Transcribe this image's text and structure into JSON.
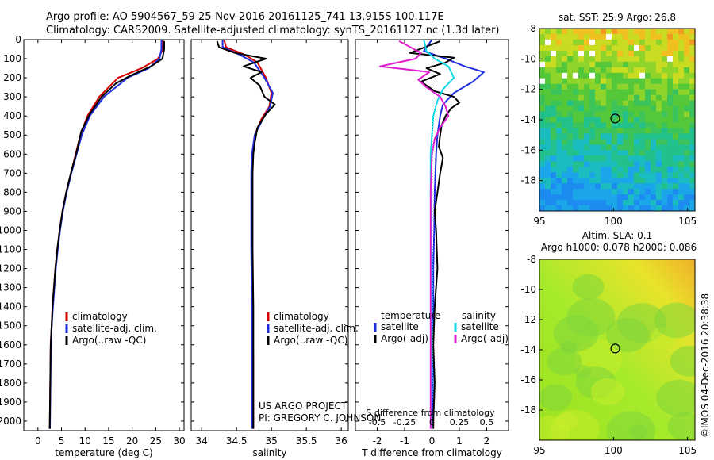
{
  "header": {
    "line1": "Argo profile: AO 5904567_59 25-Nov-2016 20161125_741 13.915S 100.117E",
    "line2": "Climatology: CARS2009. Satellite-adjusted climatology: synTS_20161127.nc (1.3d later)"
  },
  "colors": {
    "climatology": "#d40000",
    "satellite": "#1f2fe0",
    "argo": "#000000",
    "cyan": "#11d8e6",
    "magenta": "#e020d0"
  },
  "chart_data": [
    {
      "id": "temperature",
      "type": "line",
      "xlabel": "temperature (deg C)",
      "ylabel": "",
      "xlim": [
        -3,
        31
      ],
      "ylim": [
        2050,
        0
      ],
      "xticks": [
        "0",
        "5",
        "10",
        "15",
        "20",
        "25",
        "30"
      ],
      "xtick_values": [
        0,
        5,
        10,
        15,
        20,
        25,
        30
      ],
      "yticks": [
        "0",
        "100",
        "200",
        "300",
        "400",
        "500",
        "600",
        "700",
        "800",
        "900",
        "1000",
        "1100",
        "1200",
        "1300",
        "1400",
        "1500",
        "1600",
        "1700",
        "1800",
        "1900",
        "2000"
      ],
      "ytick_values": [
        0,
        100,
        200,
        300,
        400,
        500,
        600,
        700,
        800,
        900,
        1000,
        1100,
        1200,
        1300,
        1400,
        1500,
        1600,
        1700,
        1800,
        1900,
        2000
      ],
      "legend": [
        "climatology",
        "satellite-adj. clim.",
        "Argo(..raw -QC)"
      ],
      "series": [
        {
          "name": "climatology",
          "color_key": "climatology",
          "x": [
            26.5,
            26.5,
            25.5,
            22,
            17,
            13,
            10.5,
            9,
            8,
            7,
            6,
            5.2,
            4.6,
            4.1,
            3.7,
            3.4,
            3.1,
            2.9,
            2.7,
            2.5
          ],
          "y": [
            0,
            50,
            100,
            150,
            200,
            300,
            400,
            500,
            600,
            700,
            800,
            900,
            1000,
            1100,
            1200,
            1300,
            1400,
            1500,
            1600,
            2040
          ]
        },
        {
          "name": "satellite",
          "color_key": "satellite",
          "x": [
            26.2,
            26.2,
            25.8,
            23.5,
            19,
            14,
            11,
            9.3,
            8.2,
            7.1,
            6.1,
            5.3,
            4.7,
            4.2,
            3.8,
            3.5,
            3.2,
            2.95,
            2.75,
            2.55
          ],
          "y": [
            0,
            50,
            100,
            150,
            200,
            300,
            400,
            500,
            600,
            700,
            800,
            900,
            1000,
            1100,
            1200,
            1300,
            1400,
            1500,
            1600,
            2040
          ]
        },
        {
          "name": "argo",
          "color_key": "argo",
          "x": [
            26.8,
            26.8,
            26.4,
            24,
            19.5,
            16.5,
            13.5,
            11,
            9.2,
            8.1,
            7,
            6,
            5.2,
            4.6,
            4.1,
            3.7,
            3.4,
            3.1,
            2.9,
            2.7,
            2.5
          ],
          "y": [
            8,
            50,
            100,
            140,
            190,
            230,
            300,
            390,
            480,
            600,
            700,
            800,
            900,
            1000,
            1100,
            1200,
            1300,
            1400,
            1500,
            1600,
            2040
          ]
        }
      ]
    },
    {
      "id": "salinity",
      "type": "line",
      "xlabel": "salinity",
      "xlim": [
        33.85,
        36.1
      ],
      "ylim": [
        2050,
        0
      ],
      "xticks": [
        "34",
        "34.5",
        "35",
        "35.5",
        "36"
      ],
      "xtick_values": [
        34,
        34.5,
        35,
        35.5,
        36
      ],
      "legend": [
        "climatology",
        "satellite-adj. clim.",
        "Argo(..raw -QC)"
      ],
      "credit_lines": [
        "US ARGO PROJECT",
        "PI: GREGORY C. JOHNSON"
      ],
      "series": [
        {
          "name": "climatology",
          "color_key": "climatology",
          "x": [
            34.32,
            34.35,
            34.62,
            34.8,
            34.92,
            35.0,
            34.97,
            34.85,
            34.76,
            34.73,
            34.72,
            34.72,
            34.72,
            34.73,
            34.74,
            34.74,
            34.74
          ],
          "y": [
            0,
            40,
            80,
            120,
            200,
            280,
            350,
            420,
            500,
            600,
            700,
            900,
            1100,
            1400,
            1700,
            2000,
            2040
          ]
        },
        {
          "name": "satellite",
          "color_key": "satellite",
          "x": [
            34.3,
            34.3,
            34.55,
            34.75,
            34.9,
            35.02,
            34.98,
            34.87,
            34.76,
            34.72,
            34.71,
            34.71,
            34.71,
            34.72,
            34.72,
            34.72,
            34.72
          ],
          "y": [
            0,
            40,
            80,
            120,
            200,
            280,
            350,
            420,
            500,
            600,
            700,
            900,
            1100,
            1400,
            1700,
            2000,
            2040
          ]
        },
        {
          "name": "argo",
          "color_key": "argo",
          "x": [
            34.22,
            34.25,
            34.48,
            34.92,
            34.6,
            34.86,
            34.7,
            34.83,
            34.9,
            35.05,
            34.92,
            34.8,
            34.76,
            34.74,
            34.73,
            34.73,
            34.73,
            34.74,
            34.74,
            34.74
          ],
          "y": [
            8,
            40,
            70,
            100,
            140,
            170,
            200,
            240,
            300,
            340,
            390,
            460,
            540,
            600,
            700,
            900,
            1100,
            1400,
            1700,
            2040
          ]
        }
      ]
    },
    {
      "id": "difference",
      "type": "line",
      "xlabel": "T difference from climatology",
      "top_label": "S difference from climatology",
      "xlim": [
        -2.8,
        2.8
      ],
      "ylim": [
        2050,
        0
      ],
      "xticks": [
        "-2",
        "-1",
        "0",
        "1",
        "2"
      ],
      "xtick_values": [
        -2,
        -1,
        0,
        1,
        2
      ],
      "top_ticks": [
        "-0.5",
        "-0.25",
        "0",
        "0.25",
        "0.5"
      ],
      "top_tick_values": [
        -0.5,
        -0.25,
        0,
        0.25,
        0.5
      ],
      "legend_left_title": "temperature",
      "legend_left": [
        "satellite",
        "Argo(-adj)"
      ],
      "legend_right_title": "salinity",
      "legend_right": [
        "satellite",
        "Argo(-adj)"
      ],
      "series": [
        {
          "name": "T satellite",
          "color_key": "satellite",
          "x": [
            0,
            -0.3,
            0.5,
            1.2,
            1.9,
            1.5,
            0.8,
            0.4,
            0.3,
            0.2,
            0.15,
            0.1,
            0.08,
            0.05,
            0.05,
            0.04,
            0.03,
            0.02,
            0.02
          ],
          "y": [
            0,
            60,
            100,
            140,
            170,
            220,
            280,
            340,
            400,
            500,
            600,
            800,
            1000,
            1200,
            1400,
            1600,
            1800,
            2000,
            2040
          ]
        },
        {
          "name": "T Argo",
          "color_key": "argo",
          "x": [
            0.3,
            -0.8,
            0.8,
            0.5,
            -0.2,
            0.3,
            -0.4,
            0.1,
            0.8,
            1.0,
            0.7,
            0.5,
            0.35,
            0.3,
            0.25,
            0.4,
            0.3,
            0.2,
            0.1,
            0.15,
            0.2,
            0.1,
            0.05,
            0.1,
            0.05,
            0.05
          ],
          "y": [
            8,
            70,
            95,
            120,
            150,
            180,
            220,
            270,
            300,
            330,
            360,
            400,
            450,
            500,
            560,
            620,
            700,
            800,
            900,
            1000,
            1200,
            1400,
            1600,
            1800,
            2000,
            2040
          ]
        },
        {
          "name": "S satellite",
          "color_key": "cyan",
          "x": [
            -0.3,
            -0.2,
            0.1,
            0.6,
            0.8,
            0.4,
            0.2,
            0.05,
            0.0,
            -0.05,
            -0.05,
            -0.02,
            0.0,
            0.0,
            0.0,
            -0.02,
            0.0
          ],
          "y": [
            0,
            60,
            100,
            140,
            200,
            260,
            320,
            400,
            500,
            600,
            800,
            1000,
            1200,
            1500,
            1800,
            2000,
            2040
          ]
        },
        {
          "name": "S Argo",
          "color_key": "magenta",
          "x": [
            -1.2,
            -0.4,
            -0.6,
            -1.9,
            -0.1,
            -0.5,
            -0.2,
            0.3,
            0.5,
            0.6,
            0.3,
            0.1,
            0.0,
            -0.05,
            -0.05,
            -0.05,
            -0.05
          ],
          "y": [
            8,
            70,
            100,
            140,
            170,
            210,
            250,
            300,
            350,
            400,
            460,
            520,
            600,
            800,
            1000,
            1500,
            2040
          ]
        }
      ]
    },
    {
      "id": "sst_map",
      "type": "heatmap",
      "title": "sat. SST: 25.9 Argo: 26.8",
      "xlim": [
        95,
        105.5
      ],
      "ylim": [
        -20,
        -8
      ],
      "xticks": [
        "95",
        "100",
        "105"
      ],
      "xtick_values": [
        95,
        100,
        105
      ],
      "yticks": [
        "-8",
        "-10",
        "-12",
        "-14",
        "-16",
        "-18"
      ],
      "ytick_values": [
        -8,
        -10,
        -12,
        -14,
        -16,
        -18
      ],
      "marker": {
        "lon": 100.117,
        "lat": -13.915
      }
    },
    {
      "id": "sla_map",
      "type": "heatmap",
      "title_line1": "Altim. SLA: 0.1",
      "title_line2": "Argo h1000: 0.078 h2000: 0.086",
      "xlim": [
        95,
        105.5
      ],
      "ylim": [
        -20,
        -8
      ],
      "xticks": [
        "95",
        "100",
        "105"
      ],
      "xtick_values": [
        95,
        100,
        105
      ],
      "yticks": [
        "-8",
        "-10",
        "-12",
        "-14",
        "-16",
        "-18"
      ],
      "ytick_values": [
        -8,
        -10,
        -12,
        -14,
        -16,
        -18
      ],
      "marker": {
        "lon": 100.117,
        "lat": -13.915
      }
    }
  ],
  "side_credit": "©IMOS 04-Dec-2016 20:38:38"
}
